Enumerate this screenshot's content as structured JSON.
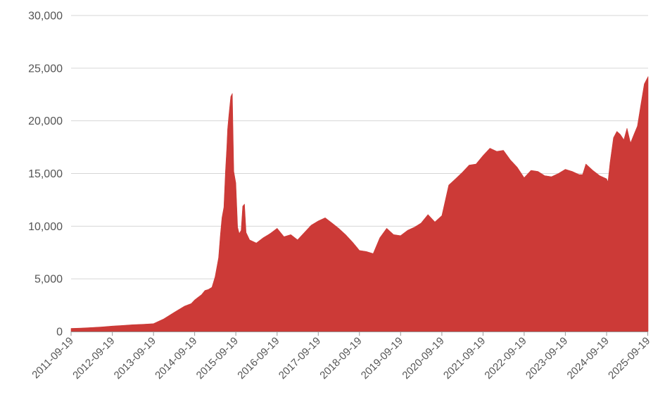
{
  "chart_data": {
    "type": "area",
    "title": "",
    "xlabel": "",
    "ylabel": "",
    "color": "#cc3a37",
    "grid": true,
    "ylim": [
      0,
      30000
    ],
    "y_ticks": [
      0,
      5000,
      10000,
      15000,
      20000,
      25000,
      30000
    ],
    "y_tick_labels": [
      "0",
      "5,000",
      "10,000",
      "15,000",
      "20,000",
      "25,000",
      "30,000"
    ],
    "x_range": [
      "2011-09-19",
      "2025-09-22"
    ],
    "x_ticks": [
      "2011-09-19",
      "2012-09-19",
      "2013-09-19",
      "2014-09-19",
      "2015-09-19",
      "2016-09-19",
      "2017-09-19",
      "2018-09-19",
      "2019-09-19",
      "2020-09-19",
      "2021-09-19",
      "2022-09-19",
      "2023-09-19",
      "2024-09-19",
      "2025-09-19"
    ],
    "series": [
      {
        "x": [
          "2011-09-19",
          "2011-12-19",
          "2012-03-19",
          "2012-06-19",
          "2012-09-19",
          "2012-12-19",
          "2013-03-19",
          "2013-06-19",
          "2013-09-19",
          "2013-12-19",
          "2014-03-19",
          "2014-06-19",
          "2014-08-19",
          "2014-09-19",
          "2014-10-19",
          "2014-11-19",
          "2014-12-19",
          "2015-01-19",
          "2015-02-19",
          "2015-03-19",
          "2015-04-19",
          "2015-05-05",
          "2015-05-19",
          "2015-06-05",
          "2015-06-12",
          "2015-06-19",
          "2015-07-01",
          "2015-07-08",
          "2015-07-19",
          "2015-08-05",
          "2015-08-19",
          "2015-09-01",
          "2015-09-19",
          "2015-10-05",
          "2015-10-19",
          "2015-11-05",
          "2015-11-19",
          "2015-12-05",
          "2015-12-19",
          "2016-01-19",
          "2016-03-19",
          "2016-05-19",
          "2016-07-19",
          "2016-09-19",
          "2016-11-19",
          "2017-01-19",
          "2017-03-19",
          "2017-05-19",
          "2017-07-19",
          "2017-09-19",
          "2017-11-19",
          "2018-01-19",
          "2018-03-19",
          "2018-05-19",
          "2018-07-19",
          "2018-09-19",
          "2018-11-19",
          "2019-01-19",
          "2019-03-19",
          "2019-05-19",
          "2019-07-19",
          "2019-09-19",
          "2019-11-19",
          "2020-01-19",
          "2020-03-19",
          "2020-05-19",
          "2020-07-19",
          "2020-09-19",
          "2020-11-19",
          "2021-01-19",
          "2021-03-19",
          "2021-05-19",
          "2021-07-19",
          "2021-09-19",
          "2021-11-19",
          "2022-01-19",
          "2022-03-19",
          "2022-05-19",
          "2022-07-19",
          "2022-09-19",
          "2022-11-19",
          "2023-01-19",
          "2023-03-19",
          "2023-05-19",
          "2023-07-19",
          "2023-09-19",
          "2023-11-19",
          "2024-01-19",
          "2024-02-19",
          "2024-03-19",
          "2024-05-19",
          "2024-07-19",
          "2024-09-19",
          "2024-10-01",
          "2024-10-19",
          "2024-11-19",
          "2024-12-19",
          "2025-01-19",
          "2025-02-19",
          "2025-03-19",
          "2025-04-19",
          "2025-05-19",
          "2025-06-19",
          "2025-07-19",
          "2025-08-19",
          "2025-09-22"
        ],
        "values": [
          300,
          330,
          380,
          440,
          520,
          580,
          650,
          690,
          750,
          1200,
          1800,
          2400,
          2650,
          3000,
          3250,
          3500,
          3900,
          4000,
          4200,
          5200,
          7000,
          9200,
          10800,
          11800,
          13500,
          15200,
          17500,
          19200,
          20500,
          22300,
          22600,
          15200,
          14100,
          9900,
          9300,
          9600,
          11900,
          12100,
          9400,
          8700,
          8400,
          8900,
          9300,
          9800,
          9000,
          9200,
          8700,
          9400,
          10100,
          10500,
          10800,
          10300,
          9800,
          9200,
          8500,
          7700,
          7600,
          7400,
          8900,
          9800,
          9200,
          9100,
          9600,
          9900,
          10300,
          11100,
          10400,
          11000,
          13900,
          14500,
          15100,
          15800,
          15900,
          16700,
          17400,
          17100,
          17200,
          16300,
          15600,
          14600,
          15300,
          15200,
          14800,
          14700,
          15000,
          15400,
          15200,
          14900,
          14900,
          15900,
          15300,
          14800,
          14500,
          14200,
          16000,
          18400,
          19000,
          18700,
          18200,
          19300,
          17900,
          18700,
          19500,
          21500,
          23500,
          24200
        ]
      }
    ]
  }
}
